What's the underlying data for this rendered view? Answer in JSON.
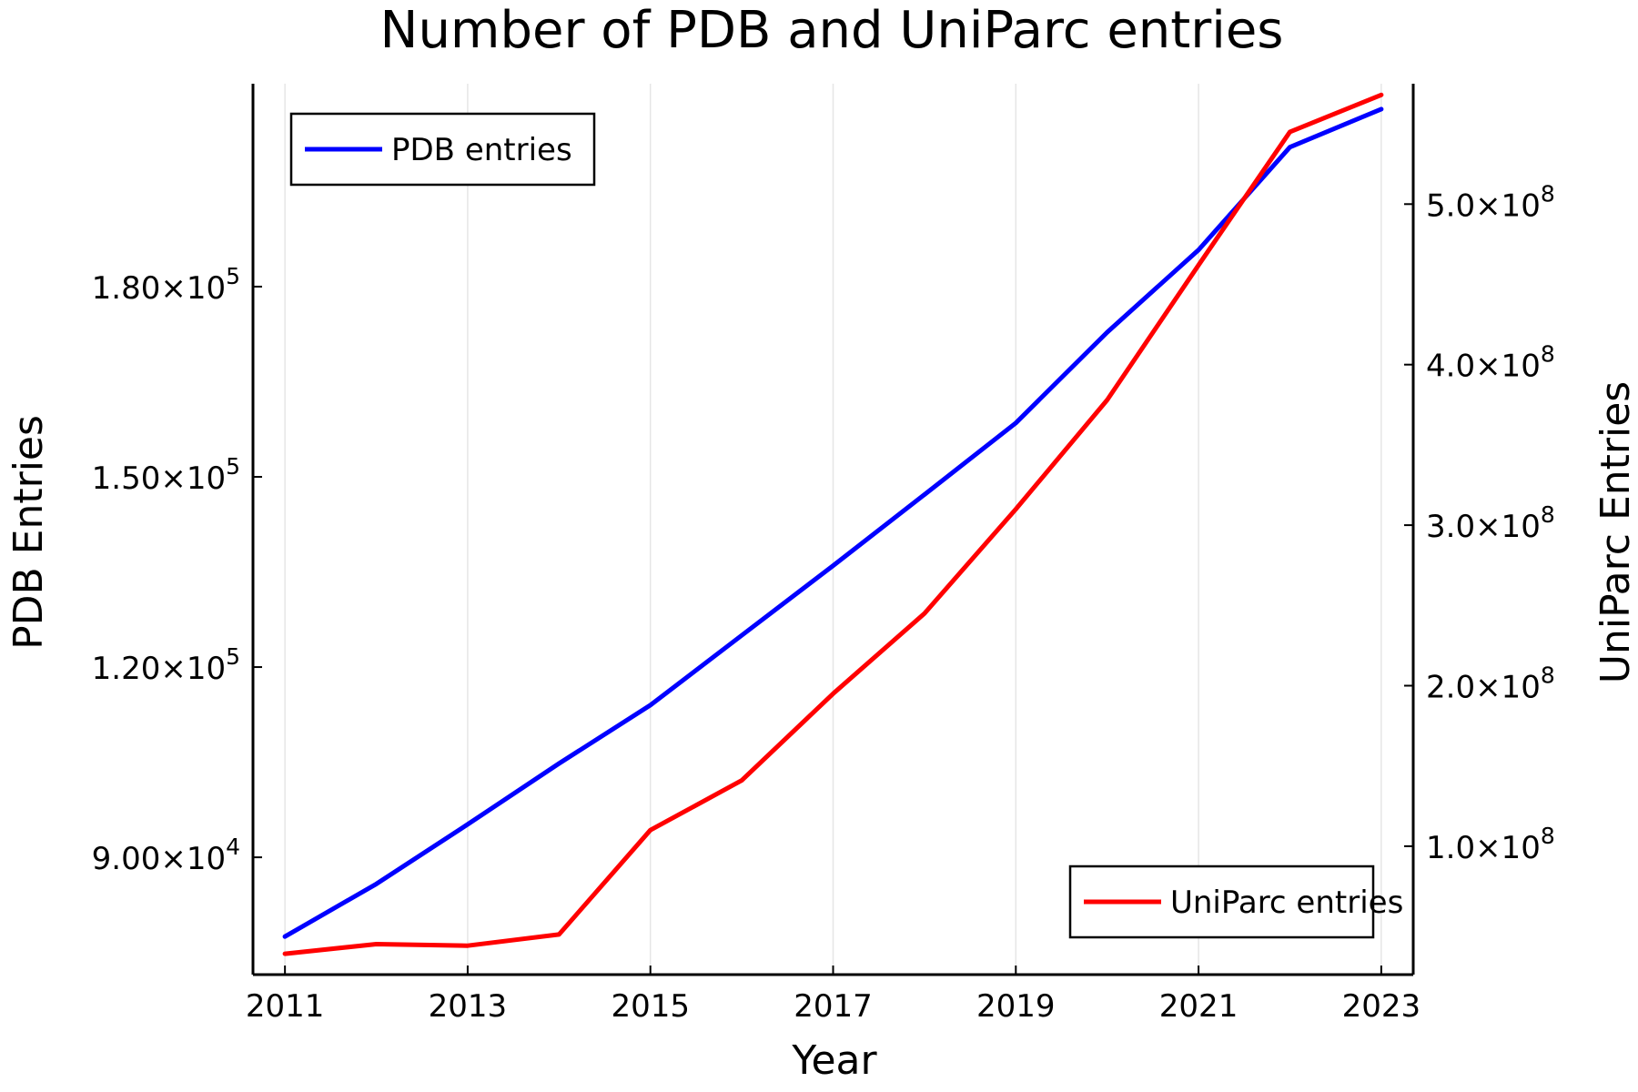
{
  "chart_data": {
    "type": "line",
    "title": "Number of PDB and UniParc entries",
    "xlabel": "Year",
    "ylabel": "PDB Entries",
    "ylabel_right": "UniParc Entries",
    "x": [
      2011,
      2012,
      2013,
      2014,
      2015,
      2016,
      2017,
      2018,
      2019,
      2020,
      2021,
      2022,
      2023
    ],
    "xlim": [
      2010.65,
      2023.35
    ],
    "xticks": [
      2011,
      2013,
      2015,
      2017,
      2019,
      2021,
      2023
    ],
    "xtick_labels": [
      "2011",
      "2013",
      "2015",
      "2017",
      "2019",
      "2021",
      "2023"
    ],
    "grid": "vertical",
    "series": [
      {
        "name": "PDB entries",
        "axis": "left",
        "color": "#0000ff",
        "values": [
          77500,
          85800,
          95200,
          104800,
          114000,
          125000,
          136000,
          147200,
          158500,
          172800,
          185800,
          202000,
          208000
        ],
        "legend_position": "top-left"
      },
      {
        "name": "UniParc entries",
        "axis": "right",
        "color": "#ff0000",
        "values": [
          33000,
          39000,
          38000,
          45000,
          110000,
          141000,
          195000,
          245000,
          310000,
          378000,
          462000,
          545000,
          568000
        ],
        "legend_position": "bottom-right"
      }
    ],
    "y_left": {
      "ylim": [
        71500,
        212000
      ],
      "ticks": [
        90000,
        120000,
        150000,
        180000
      ],
      "tick_labels": [
        {
          "mantissa": "9.00×10",
          "exp": "4"
        },
        {
          "mantissa": "1.20×10",
          "exp": "5"
        },
        {
          "mantissa": "1.50×10",
          "exp": "5"
        },
        {
          "mantissa": "1.80×10",
          "exp": "5"
        }
      ]
    },
    "y_right": {
      "ylim": [
        20000,
        575000
      ],
      "ticks": [
        100000000,
        200000000,
        300000000,
        400000000,
        500000000
      ],
      "tick_positions": [
        100000,
        200000,
        300000,
        400000,
        500000
      ],
      "tick_labels": [
        {
          "mantissa": "1.0×10",
          "exp": "8"
        },
        {
          "mantissa": "2.0×10",
          "exp": "8"
        },
        {
          "mantissa": "3.0×10",
          "exp": "8"
        },
        {
          "mantissa": "4.0×10",
          "exp": "8"
        },
        {
          "mantissa": "5.0×10",
          "exp": "8"
        }
      ]
    }
  }
}
